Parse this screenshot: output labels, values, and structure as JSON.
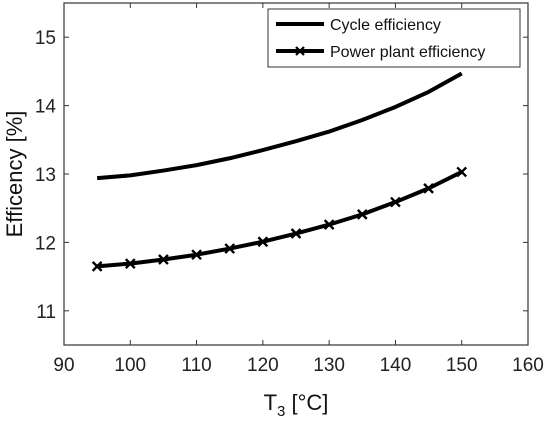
{
  "chart_data": {
    "type": "line",
    "xlabel": {
      "main": "T",
      "sub": "3",
      "rest": " [°C]"
    },
    "ylabel": "Efficency [%]",
    "xlim": [
      90,
      160
    ],
    "ylim": [
      10.5,
      15.5
    ],
    "xticks": [
      "90",
      "100",
      "110",
      "120",
      "130",
      "140",
      "150",
      "160"
    ],
    "yticks": [
      "11",
      "12",
      "13",
      "14",
      "15"
    ],
    "grid": false,
    "legend_position": "top-right",
    "x": [
      95,
      100,
      105,
      110,
      115,
      120,
      125,
      130,
      135,
      140,
      145,
      150
    ],
    "series": [
      {
        "name": "Cycle efficiency",
        "color": "#000000",
        "marker": "none",
        "values": [
          12.94,
          12.98,
          13.05,
          13.13,
          13.23,
          13.35,
          13.48,
          13.62,
          13.79,
          13.98,
          14.2,
          14.47
        ]
      },
      {
        "name": "Power plant efficiency",
        "color": "#000000",
        "marker": "x",
        "values": [
          11.65,
          11.69,
          11.75,
          11.82,
          11.91,
          12.01,
          12.13,
          12.26,
          12.41,
          12.59,
          12.79,
          13.03
        ]
      }
    ]
  }
}
